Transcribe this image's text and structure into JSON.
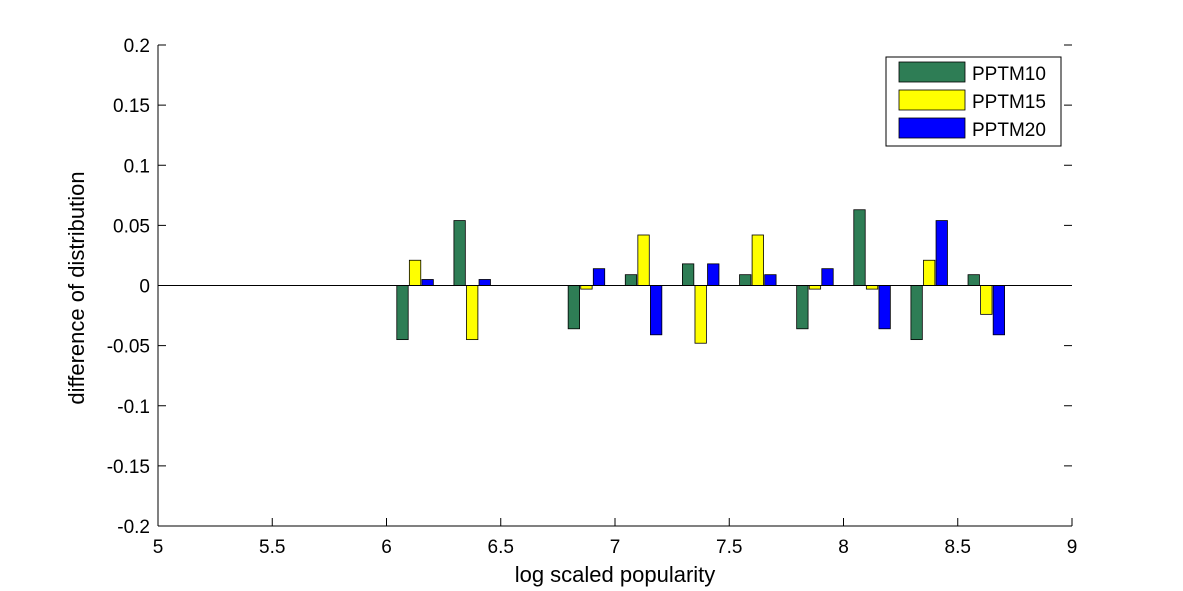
{
  "chart_data": {
    "type": "bar",
    "xlabel": "log scaled popularity",
    "ylabel": "difference of distribution",
    "xlim": [
      5,
      9
    ],
    "ylim": [
      -0.2,
      0.2
    ],
    "xticks": [
      5,
      5.5,
      6,
      6.5,
      7,
      7.5,
      8,
      8.5,
      9
    ],
    "xtick_labels": [
      "5",
      "5.5",
      "6",
      "6.5",
      "7",
      "7.5",
      "8",
      "8.5",
      "9"
    ],
    "yticks": [
      0.2,
      0.15,
      0.1,
      0.05,
      0,
      -0.05,
      -0.1,
      -0.15,
      -0.2
    ],
    "ytick_labels": [
      "0.2",
      "0.15",
      "0.1",
      "0.05",
      "0",
      "-0.05",
      "-0.1",
      "-0.15",
      "-0.2"
    ],
    "x": [
      6.125,
      6.375,
      6.875,
      7.125,
      7.375,
      7.625,
      7.875,
      8.125,
      8.375,
      8.625
    ],
    "series": [
      {
        "name": "PPTM10",
        "color": "#2e7d55",
        "values": [
          -0.045,
          0.054,
          -0.036,
          0.009,
          0.018,
          0.009,
          -0.036,
          0.063,
          -0.045,
          0.009
        ]
      },
      {
        "name": "PPTM15",
        "color": "#ffff00",
        "values": [
          0.021,
          -0.045,
          -0.003,
          0.042,
          -0.048,
          0.042,
          -0.003,
          -0.003,
          0.021,
          -0.024
        ]
      },
      {
        "name": "PPTM20",
        "color": "#0000ff",
        "values": [
          0.005,
          0.005,
          0.014,
          -0.041,
          0.018,
          0.009,
          0.014,
          -0.036,
          0.054,
          -0.041
        ]
      }
    ],
    "legend": "top-right",
    "grid": false
  }
}
